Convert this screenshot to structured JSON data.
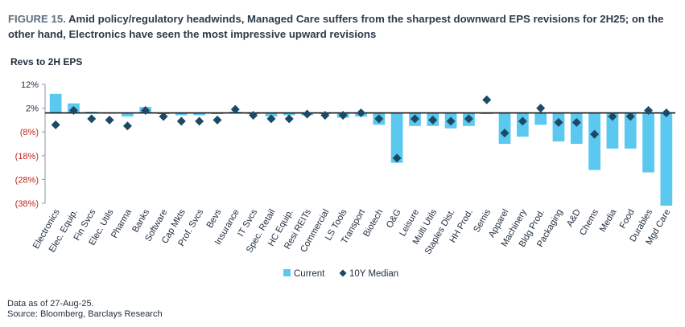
{
  "figure": {
    "label": "FIGURE 15.",
    "title_text": "Amid policy/regulatory headwinds, Managed Care suffers from the sharpest downward EPS revisions for 2H25; on the other hand, Electronics have seen the most impressive upward revisions"
  },
  "colors": {
    "current_bar": "#5bc8f0",
    "median_marker": "#1b4a66",
    "negative_tick": "#c0261c",
    "positive_tick": "#1f2d3d"
  },
  "chart_data": {
    "type": "bar",
    "ylabel": "Revs to 2H EPS",
    "ylim": [
      -38,
      12
    ],
    "yticks": [
      {
        "value": 12,
        "label": "12%"
      },
      {
        "value": 2,
        "label": "2%"
      },
      {
        "value": -8,
        "label": "(8%)"
      },
      {
        "value": -18,
        "label": "(18%)"
      },
      {
        "value": -28,
        "label": "(28%)"
      },
      {
        "value": -38,
        "label": "(38%)"
      }
    ],
    "categories": [
      "Electronics",
      "Elec. Equip.",
      "Fin Svcs",
      "Elec. Utils",
      "Pharma",
      "Banks",
      "Software",
      "Cap Mkts",
      "Prof. Svcs",
      "Bevs",
      "Insurance",
      "IT Svcs",
      "Spec. Retail",
      "HC Equip.",
      "Resi REITs",
      "Commercial",
      "LS Tools",
      "Transport",
      "Biotech",
      "O&G",
      "Leisure",
      "Multi Utils",
      "Staples Dist.",
      "HH Prod.",
      "Semis",
      "Apparel",
      "Machinery",
      "Bldg Prod.",
      "Packaging",
      "A&D",
      "Chems",
      "Media",
      "Food",
      "Durables",
      "Mgd Care"
    ],
    "series": [
      {
        "name": "Current",
        "style": "bar",
        "values": [
          8,
          4,
          0.5,
          0,
          -1.5,
          2.5,
          -0.5,
          -1,
          -1,
          -0.5,
          0.5,
          -0.5,
          -1.5,
          -1,
          -1,
          -0.5,
          -2,
          -1.5,
          -5,
          -21,
          -5.5,
          -5.5,
          -6.5,
          -5.5,
          -0.5,
          -13,
          -10,
          -5,
          -12,
          -13,
          -24,
          -15,
          -15,
          -25,
          -39
        ]
      },
      {
        "name": "10Y Median",
        "style": "diamond",
        "values": [
          -5,
          1,
          -2.5,
          -3,
          -5.5,
          1,
          -1.5,
          -3.5,
          -3.5,
          -3,
          1.5,
          -1,
          -2.5,
          -2.5,
          -0.5,
          -1,
          -1,
          0,
          -2.5,
          -19,
          -2.5,
          -3,
          -3.5,
          -2.5,
          5.5,
          -8.5,
          -3.5,
          2,
          -4,
          -4,
          -9,
          -1.5,
          -1.5,
          1,
          0
        ]
      }
    ],
    "legend": {
      "position": "bottom",
      "items": [
        "Current",
        "10Y Median"
      ]
    },
    "grid": false
  },
  "footer": {
    "line1": "Data as of 27-Aug-25.",
    "line2": "Source: Bloomberg, Barclays Research"
  }
}
